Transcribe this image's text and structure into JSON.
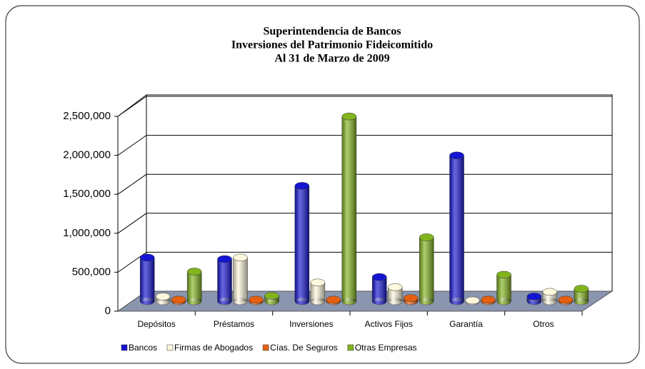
{
  "chart_data": {
    "type": "bar3d",
    "title": [
      "Superintendencia de Bancos",
      "Inversiones del Patrimonio Fideicomitido",
      "Al 31 de Marzo de 2009"
    ],
    "categories": [
      "Depósitos",
      "Préstamos",
      "Inversiones",
      "Activos Fijos",
      "Garantía",
      "Otros"
    ],
    "series": [
      {
        "name": "Bancos",
        "color": "#1414d2",
        "values": [
          560000,
          540000,
          1480000,
          310000,
          1870000,
          60000
        ]
      },
      {
        "name": "Firmas de Abogados",
        "color": "#fff8dc",
        "values": [
          60000,
          560000,
          240000,
          180000,
          10000,
          120000
        ]
      },
      {
        "name": "Cías. De Seguros",
        "color": "#e8600f",
        "values": [
          20000,
          20000,
          20000,
          40000,
          20000,
          20000
        ]
      },
      {
        "name": "Otras Empresas",
        "color": "#82b41e",
        "values": [
          380000,
          70000,
          2370000,
          820000,
          340000,
          160000
        ]
      }
    ],
    "ylim": [
      0,
      2500000
    ],
    "yticks": [
      0,
      {
        "value": 500000,
        "label": "500,000"
      },
      {
        "value": 1000000,
        "label": "1,000,000"
      },
      {
        "value": 1500000,
        "label": "1,500,000"
      },
      {
        "value": 2000000,
        "label": "2,000,000"
      },
      {
        "value": 2500000,
        "label": "2,500,000"
      }
    ],
    "grid": true
  }
}
